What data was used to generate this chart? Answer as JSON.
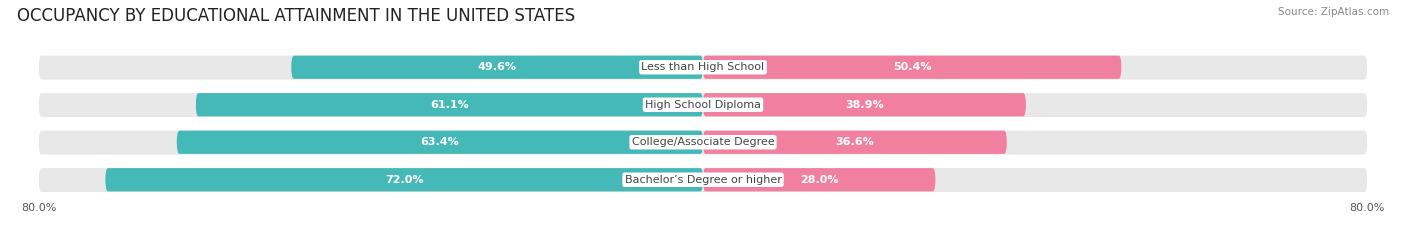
{
  "title": "OCCUPANCY BY EDUCATIONAL ATTAINMENT IN THE UNITED STATES",
  "source": "Source: ZipAtlas.com",
  "categories": [
    "Less than High School",
    "High School Diploma",
    "College/Associate Degree",
    "Bachelor’s Degree or higher"
  ],
  "owner_values": [
    49.6,
    61.1,
    63.4,
    72.0
  ],
  "renter_values": [
    50.4,
    38.9,
    36.6,
    28.0
  ],
  "owner_color": "#45b8b8",
  "renter_color": "#f07fa0",
  "bar_height": 0.62,
  "bar_bg_color": "#e8e8e8",
  "bar_shadow_color": "#cccccc",
  "title_fontsize": 12,
  "label_fontsize": 8,
  "value_fontsize": 8,
  "legend_fontsize": 8.5,
  "source_fontsize": 7.5,
  "background_color": "#ffffff",
  "text_color": "#555555",
  "label_color": "#444444"
}
